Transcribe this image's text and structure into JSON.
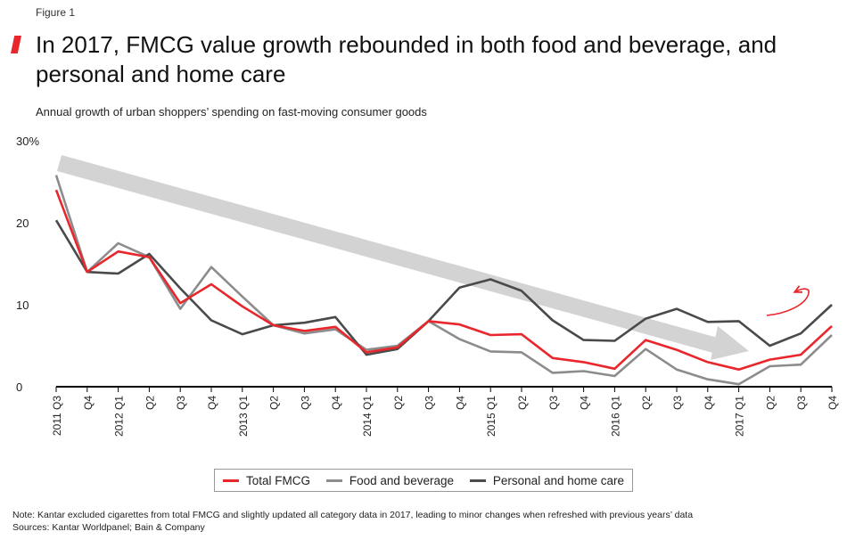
{
  "figure_label": "Figure 1",
  "title": "In 2017, FMCG value growth rebounded in both food and beverage, and personal and home care",
  "subtitle": "Annual growth of urban shoppers’ spending on fast-moving consumer goods",
  "note": "Note: Kantar excluded cigarettes from total FMCG and slightly updated all category data in 2017, leading to minor changes when refreshed with previous years’ data",
  "sources": "Sources: Kantar Worldpanel; Bain & Company",
  "colors": {
    "accent": "#e8262b",
    "total": "#e8262b",
    "food": "#8c8c8c",
    "personal": "#4a4a4a",
    "arrow": "#d3d3d3"
  },
  "chart_data": {
    "type": "line",
    "x": [
      "2011 Q3",
      "Q4",
      "2012 Q1",
      "Q2",
      "Q3",
      "Q4",
      "2013 Q1",
      "Q2",
      "Q3",
      "Q4",
      "2014 Q1",
      "Q2",
      "Q3",
      "Q4",
      "2015 Q1",
      "Q2",
      "Q3",
      "Q4",
      "2016 Q1",
      "Q2",
      "Q3",
      "Q4",
      "2017 Q1",
      "Q2",
      "Q3",
      "Q4"
    ],
    "y_ticks": [
      "0",
      "10",
      "20",
      "30%"
    ],
    "ylim": [
      0,
      30
    ],
    "legend_position": "bottom",
    "series": [
      {
        "name": "Total FMCG",
        "values": [
          24,
          14,
          16.5,
          15.8,
          10.2,
          12.5,
          9.8,
          7.5,
          6.8,
          7.3,
          4.2,
          4.8,
          8,
          7.6,
          6.3,
          6.4,
          3.5,
          3,
          2.2,
          5.7,
          4.5,
          3,
          2.1,
          3.3,
          3.9,
          7.4
        ]
      },
      {
        "name": "Food and beverage",
        "values": [
          25.8,
          14,
          17.5,
          15.8,
          9.5,
          14.6,
          11,
          7.5,
          6.5,
          7,
          4.5,
          5,
          8,
          5.8,
          4.3,
          4.2,
          1.7,
          1.9,
          1.3,
          4.6,
          2.1,
          0.9,
          0.3,
          2.5,
          2.7,
          6.3
        ]
      },
      {
        "name": "Personal and home care",
        "values": [
          20.3,
          14,
          13.8,
          16.2,
          12,
          8.1,
          6.4,
          7.5,
          7.8,
          8.5,
          3.9,
          4.6,
          8,
          12.1,
          13.1,
          11.7,
          8.1,
          5.7,
          5.6,
          8.3,
          9.5,
          7.9,
          8,
          5,
          6.5,
          10
        ]
      }
    ],
    "annotations": [
      "downward trend arrow",
      "rebound arrow"
    ]
  }
}
